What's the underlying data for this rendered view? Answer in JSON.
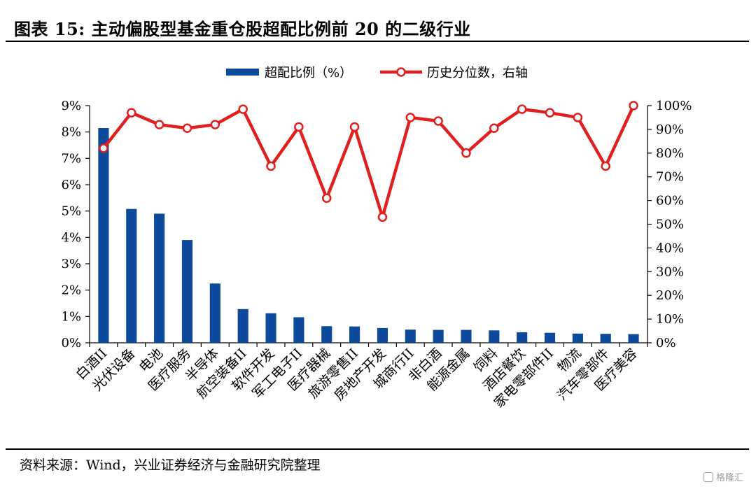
{
  "header": {
    "title": "图表 15:  主动偏股型基金重仓股超配比例前 20 的二级行业"
  },
  "footer": {
    "source": "资料来源：Wind，兴业证券经济与金融研究院整理",
    "watermark": "格隆汇"
  },
  "colors": {
    "bar": "#0d4a9b",
    "line": "#e02020",
    "marker_fill": "#ffffff"
  },
  "chart_data": {
    "type": "bar",
    "categories": [
      "白酒II",
      "光伏设备",
      "电池",
      "医疗服务",
      "半导体",
      "航空装备II",
      "软件开发",
      "军工电子II",
      "医疗器械",
      "旅游零售II",
      "房地产开发",
      "城商行II",
      "非白酒",
      "能源金属",
      "饲料",
      "酒店餐饮",
      "家电零部件II",
      "物流",
      "汽车零部件",
      "医疗美容"
    ],
    "series": [
      {
        "name": "超配比例（%）",
        "type": "bar",
        "axis": "left",
        "values": [
          8.15,
          5.08,
          4.9,
          3.9,
          2.25,
          1.28,
          1.12,
          0.97,
          0.63,
          0.62,
          0.56,
          0.5,
          0.49,
          0.49,
          0.47,
          0.4,
          0.38,
          0.35,
          0.34,
          0.33
        ]
      },
      {
        "name": "历史分位数，右轴",
        "type": "line",
        "axis": "right",
        "values": [
          82,
          97,
          92,
          90.5,
          92,
          98.5,
          74.5,
          91,
          61,
          91,
          53,
          95,
          93.5,
          80,
          90.5,
          98.5,
          97,
          95,
          74.5,
          100
        ]
      }
    ],
    "y_left": {
      "min": 0,
      "max": 9,
      "ticks": [
        "0%",
        "1%",
        "2%",
        "3%",
        "4%",
        "5%",
        "6%",
        "7%",
        "8%",
        "9%"
      ]
    },
    "y_right": {
      "min": 0,
      "max": 100,
      "ticks": [
        "0%",
        "10%",
        "20%",
        "30%",
        "40%",
        "50%",
        "60%",
        "70%",
        "80%",
        "90%",
        "100%"
      ]
    },
    "legend_position": "top-center",
    "grid": false
  }
}
